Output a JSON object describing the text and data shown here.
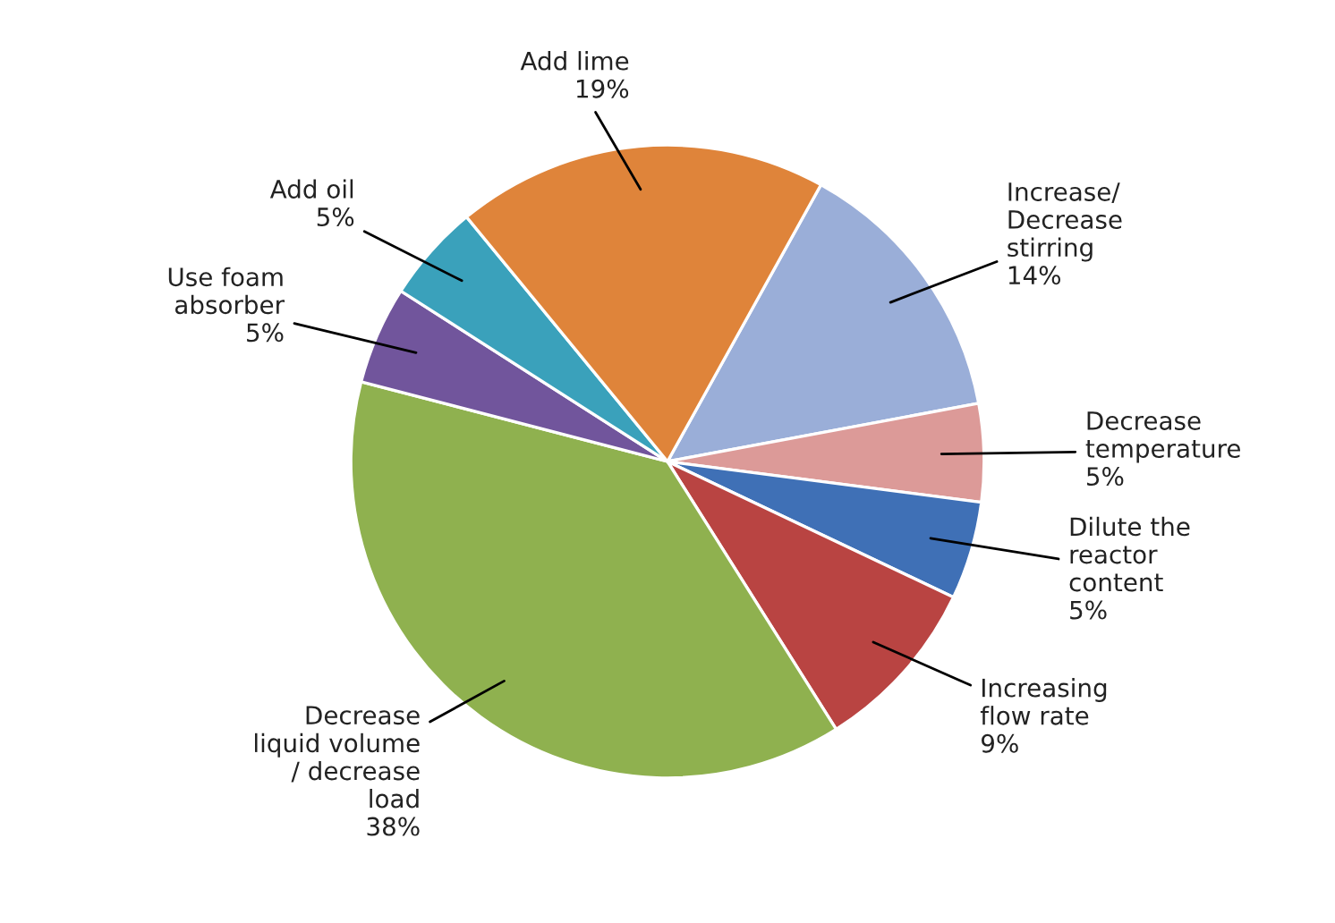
{
  "chart_data": {
    "type": "pie",
    "categories": [
      "Increase/\nDecrease\nstirring",
      "Decrease\ntemperature",
      "Dilute the\nreactor\ncontent",
      "Increasing\nflow rate",
      "Decrease\nliquid volume\n/ decrease\nload",
      "Use foam\nabsorber",
      "Add oil",
      "Add lime"
    ],
    "values": [
      14,
      5,
      5,
      9,
      38,
      5,
      5,
      19
    ],
    "value_labels": [
      "14%",
      "5%",
      "5%",
      "9%",
      "38%",
      "5%",
      "5%",
      "19%"
    ],
    "colors": [
      "#9aaed8",
      "#dc9a98",
      "#3f70b6",
      "#b94442",
      "#8fb14f",
      "#71559c",
      "#3aa1bb",
      "#df843a"
    ],
    "legend": false
  }
}
